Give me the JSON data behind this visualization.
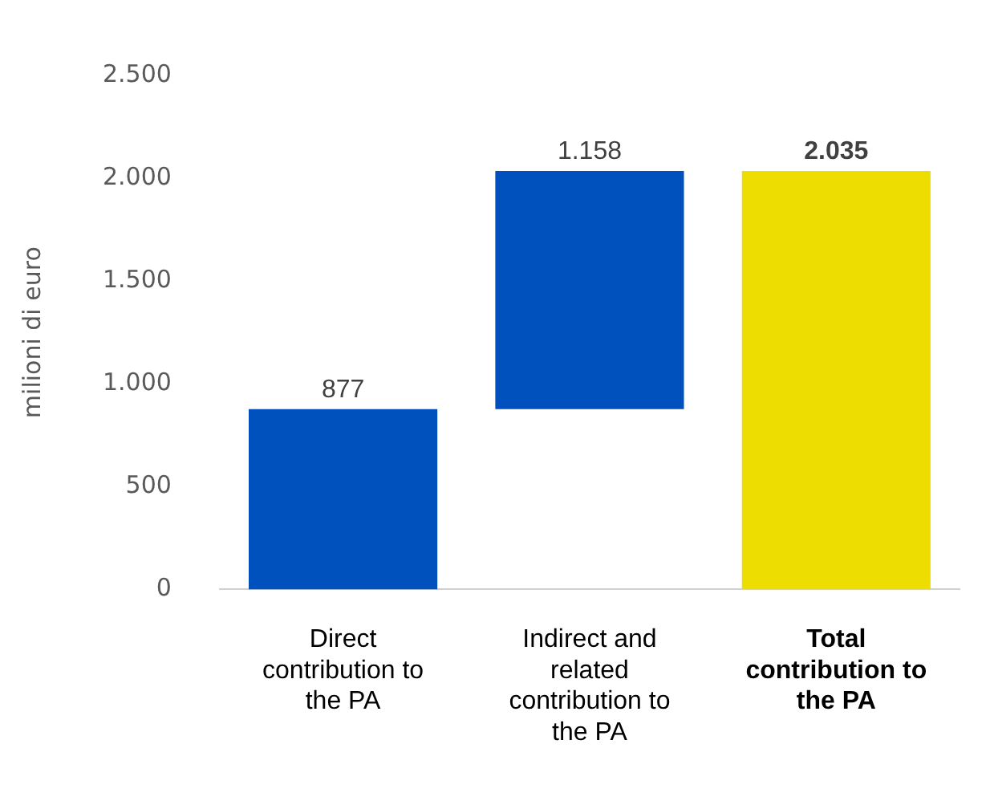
{
  "chart_data": {
    "type": "bar",
    "categories": [
      "Direct contribution to the PA",
      "Indirect and related contribution to the PA",
      "Total contribution to the PA"
    ],
    "values": [
      877,
      1158,
      2035
    ],
    "base": [
      0,
      877,
      0
    ],
    "colors": [
      "#0050be",
      "#0050be",
      "#eedd00"
    ],
    "value_labels": [
      "877",
      "1.158",
      "2.035"
    ],
    "ylabel": "milioni di euro",
    "ylim": [
      0,
      2500
    ],
    "yticks": [
      {
        "value": 0,
        "label": "0"
      },
      {
        "value": 500,
        "label": "500"
      },
      {
        "value": 1000,
        "label": "1.000"
      },
      {
        "value": 1500,
        "label": "1.500"
      },
      {
        "value": 2000,
        "label": "2.000"
      },
      {
        "value": 2500,
        "label": "2.500"
      }
    ],
    "grid": false,
    "legend": false
  }
}
